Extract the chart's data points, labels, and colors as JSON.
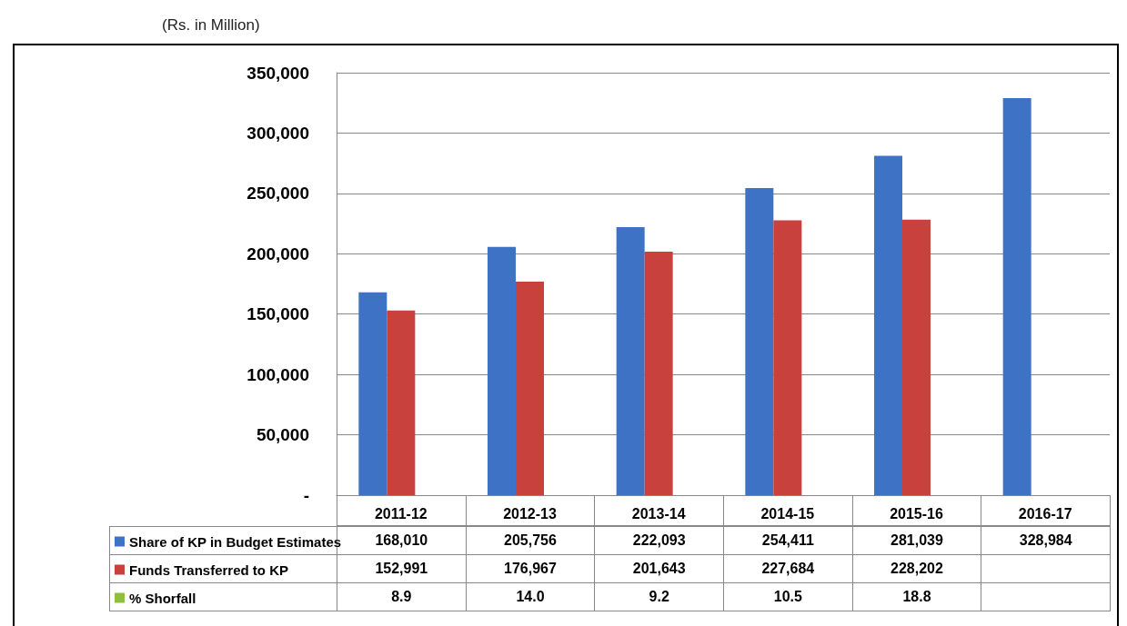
{
  "chart_data": {
    "type": "bar",
    "subtitle": "(Rs. in Million)",
    "categories": [
      "2011-12",
      "2012-13",
      "2013-14",
      "2014-15",
      "2015-16",
      "2016-17"
    ],
    "series": [
      {
        "name": "Share of KP in Budget Estimates",
        "color": "#3d72c4",
        "values": [
          168010,
          205756,
          222093,
          254411,
          281039,
          328984
        ],
        "value_labels": [
          "168,010",
          "205,756",
          "222,093",
          "254,411",
          "281,039",
          "328,984"
        ]
      },
      {
        "name": "Funds Transferred to KP",
        "color": "#c9413d",
        "values": [
          152991,
          176967,
          201643,
          227684,
          228202,
          null
        ],
        "value_labels": [
          "152,991",
          "176,967",
          "201,643",
          "227,684",
          "228,202",
          null
        ]
      },
      {
        "name": "% Shorfall",
        "color": "#8fbf3f",
        "values": [
          8.9,
          14.0,
          9.2,
          10.5,
          18.8,
          null
        ],
        "value_labels": [
          "8.9",
          "14.0",
          "9.2",
          "10.5",
          "18.8",
          null
        ]
      }
    ],
    "ylim": [
      0,
      350000
    ],
    "yticks": [
      {
        "value": 0,
        "label": "-"
      },
      {
        "value": 50000,
        "label": "50,000"
      },
      {
        "value": 100000,
        "label": "100,000"
      },
      {
        "value": 150000,
        "label": "150,000"
      },
      {
        "value": 200000,
        "label": "200,000"
      },
      {
        "value": 250000,
        "label": "250,000"
      },
      {
        "value": 300000,
        "label": "300,000"
      },
      {
        "value": 350000,
        "label": "350,000"
      }
    ],
    "grid": "y",
    "legend": "bottom left"
  }
}
